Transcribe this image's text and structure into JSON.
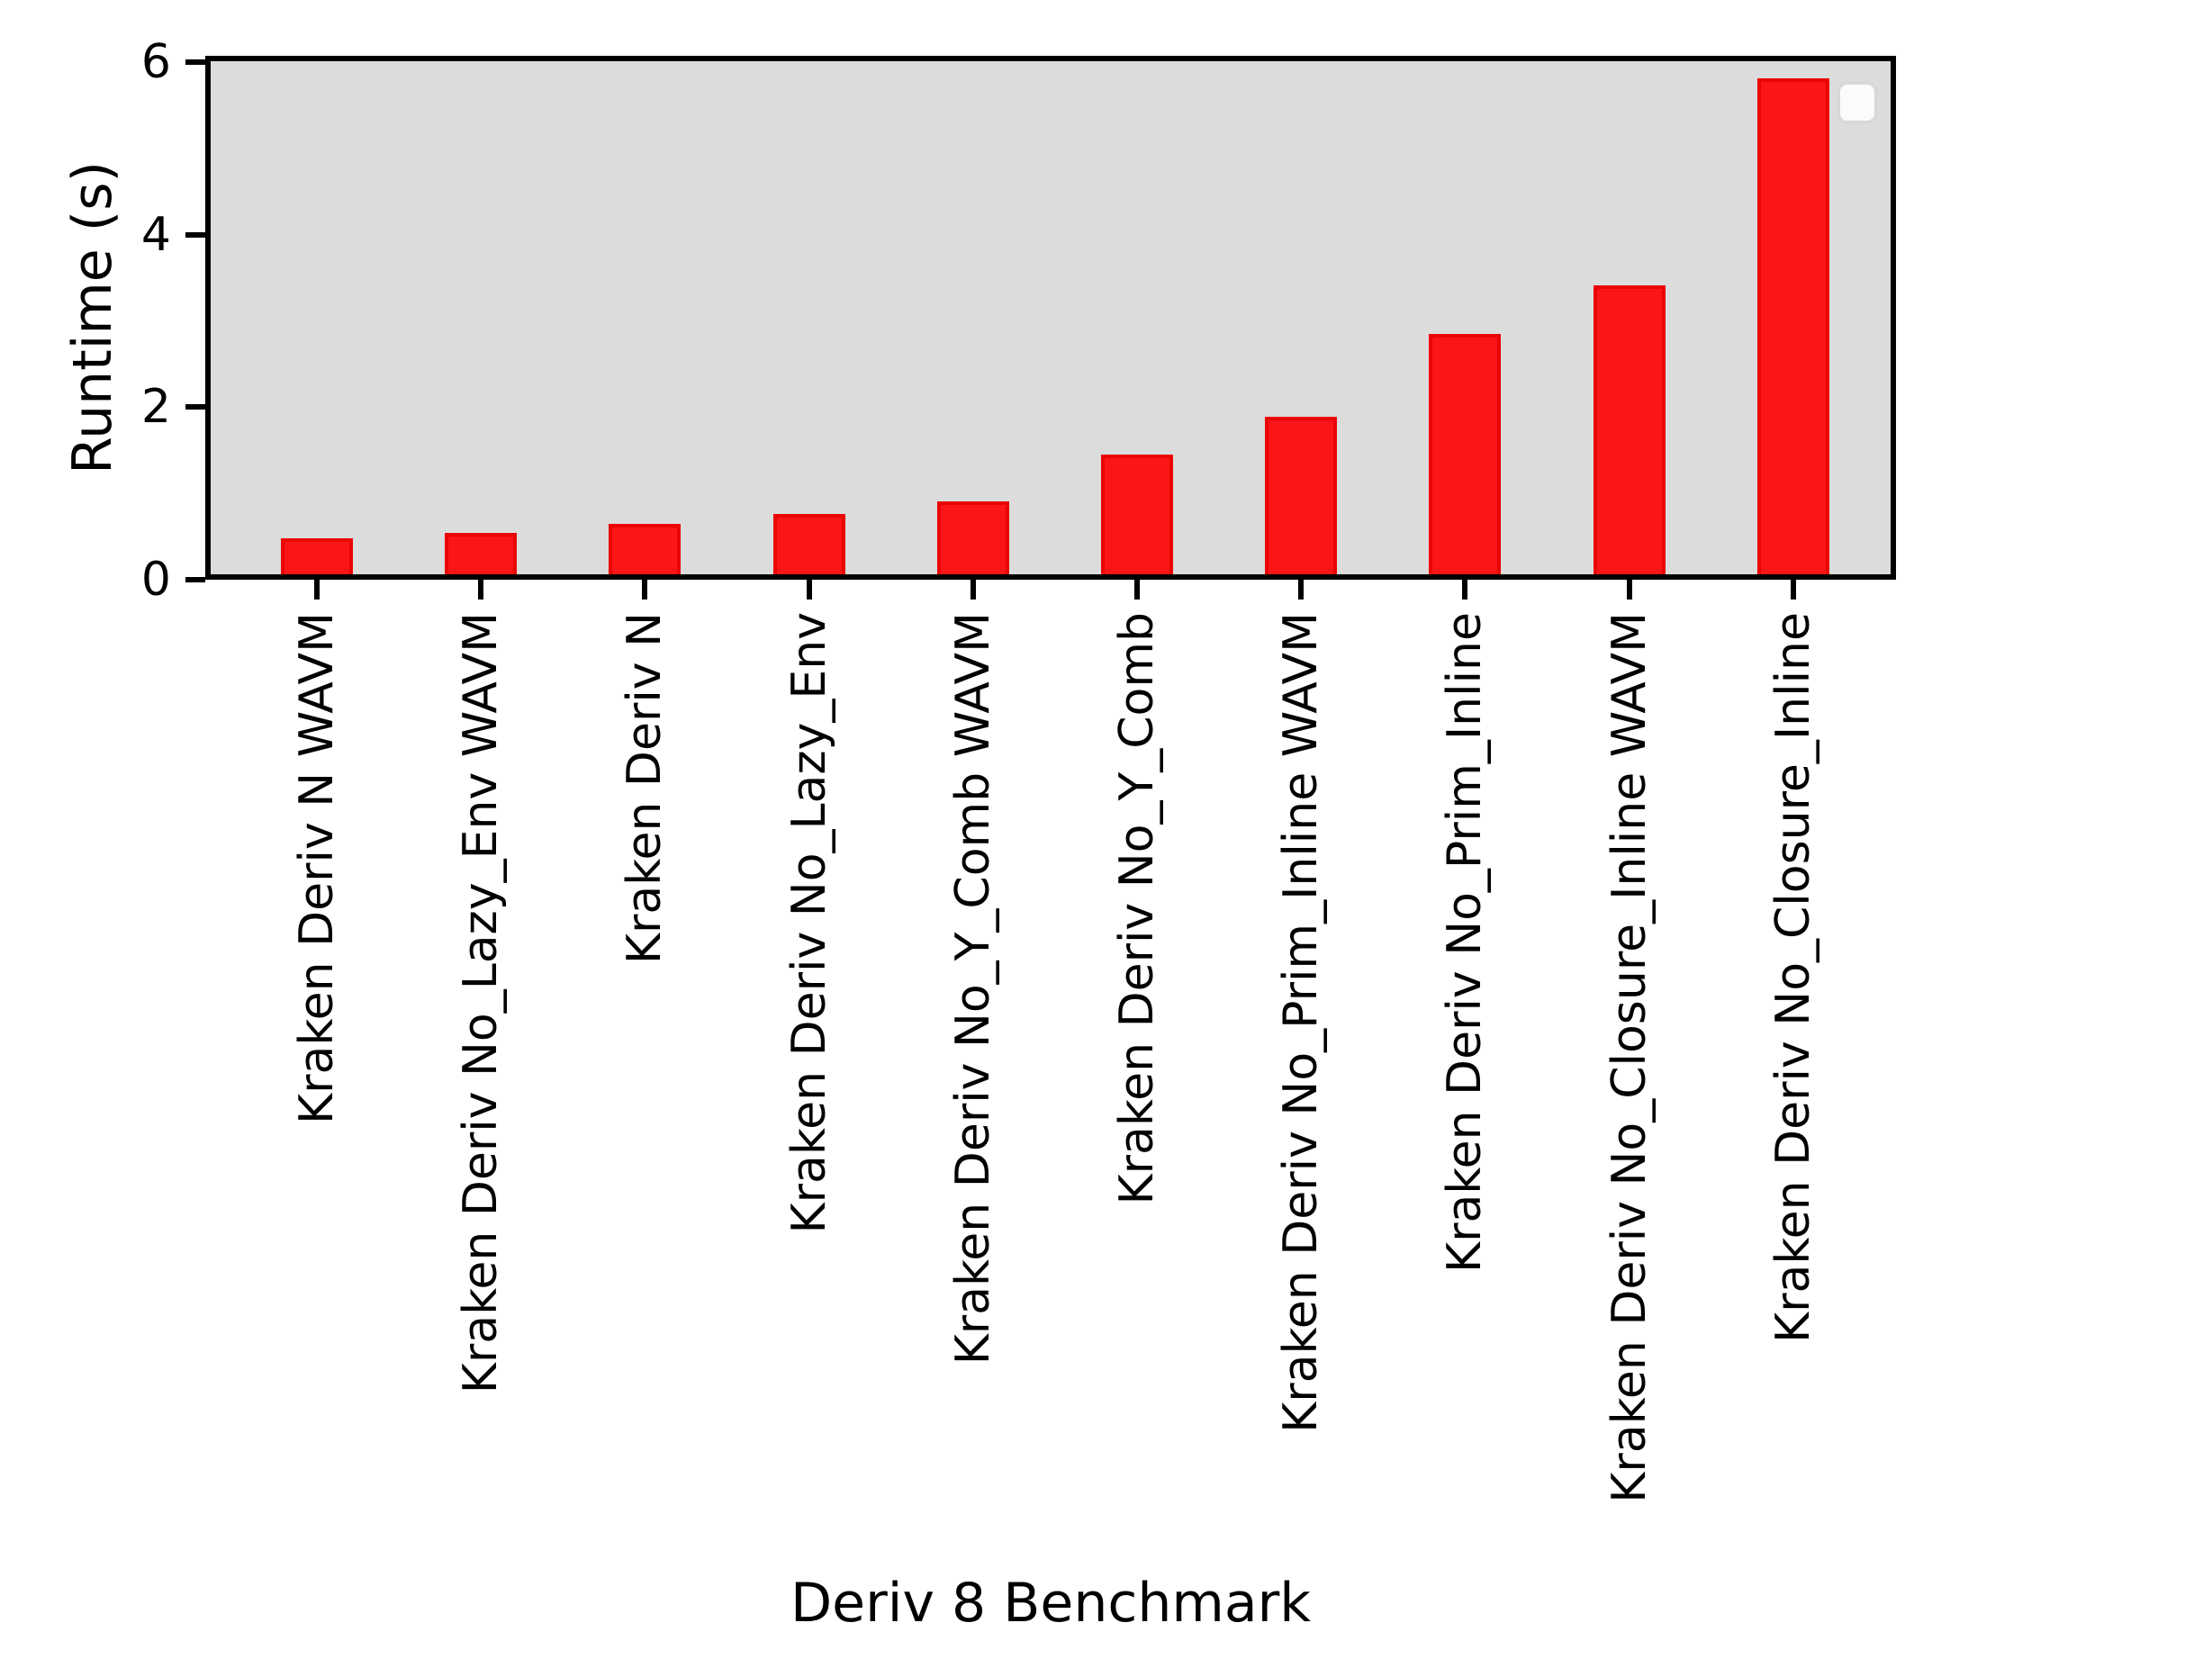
{
  "figure": {
    "type": "matplotlib-bar-chart-image"
  },
  "colors": {
    "figure_bg": "#ffffff",
    "plot_bg": "#dcdcdc",
    "spine": "#000000",
    "bar_fill": "#fa1616",
    "bar_edge": "#ea0404",
    "text": "#000000",
    "legend_bg": "#fbfbfb",
    "legend_border": "#d8d8d8"
  },
  "chart_data": {
    "type": "bar",
    "title": "",
    "xlabel": "Deriv 8 Benchmark",
    "ylabel": "Runtime (s)",
    "categories": [
      "Kraken Deriv N WAVM",
      "Kraken Deriv No_Lazy_Env WAVM",
      "Kraken Deriv N",
      "Kraken Deriv No_Lazy_Env",
      "Kraken Deriv No_Y_Comb WAVM",
      "Kraken Deriv No_Y_Comb",
      "Kraken Deriv No_Prim_Inline WAVM",
      "Kraken Deriv No_Prim_Inline",
      "Kraken Deriv No_Closure_Inline WAVM",
      "Kraken Deriv No_Closure_Inline"
    ],
    "values": [
      0.42,
      0.48,
      0.58,
      0.7,
      0.85,
      1.39,
      1.83,
      2.79,
      3.35,
      5.75
    ],
    "ylim": [
      0,
      6
    ],
    "yticks": [
      0,
      2,
      4,
      6
    ],
    "grid": false,
    "bar_color": "red",
    "legend": {
      "visible": true,
      "position": "upper right",
      "entries": []
    }
  }
}
